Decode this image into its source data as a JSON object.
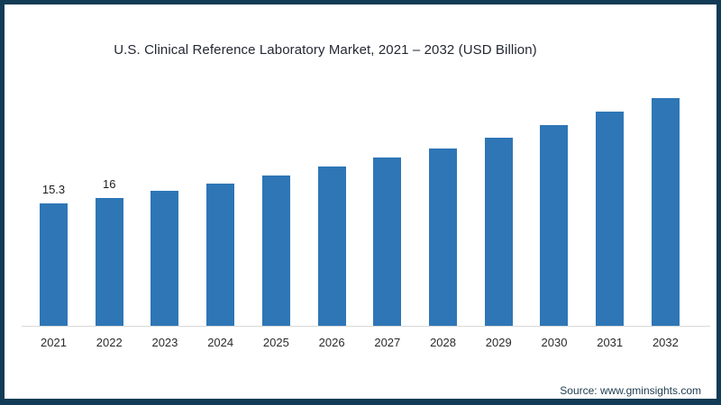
{
  "chart_data": {
    "type": "bar",
    "title": "U.S. Clinical Reference Laboratory Market, 2021 – 2032 (USD Billion)",
    "categories": [
      "2021",
      "2022",
      "2023",
      "2024",
      "2025",
      "2026",
      "2027",
      "2028",
      "2029",
      "2030",
      "2031",
      "2032"
    ],
    "values": [
      15.3,
      16,
      16.9,
      17.7,
      18.8,
      19.9,
      21.0,
      22.1,
      23.5,
      25.0,
      26.7,
      28.4
    ],
    "data_labels": [
      "15.3",
      "16",
      "",
      "",
      "",
      "",
      "",
      "",
      "",
      "",
      "",
      ""
    ],
    "xlabel": "",
    "ylabel": "",
    "ylim": [
      0,
      33.5
    ],
    "grid": false,
    "legend": false,
    "bar_color": "#2E76B6",
    "axis_line_color": "#D9D9D9"
  },
  "footer": {
    "source_label": "Source: www.gminsights.com"
  },
  "frame": {
    "border_color": "#123C55",
    "background": "#FFFFFF"
  }
}
